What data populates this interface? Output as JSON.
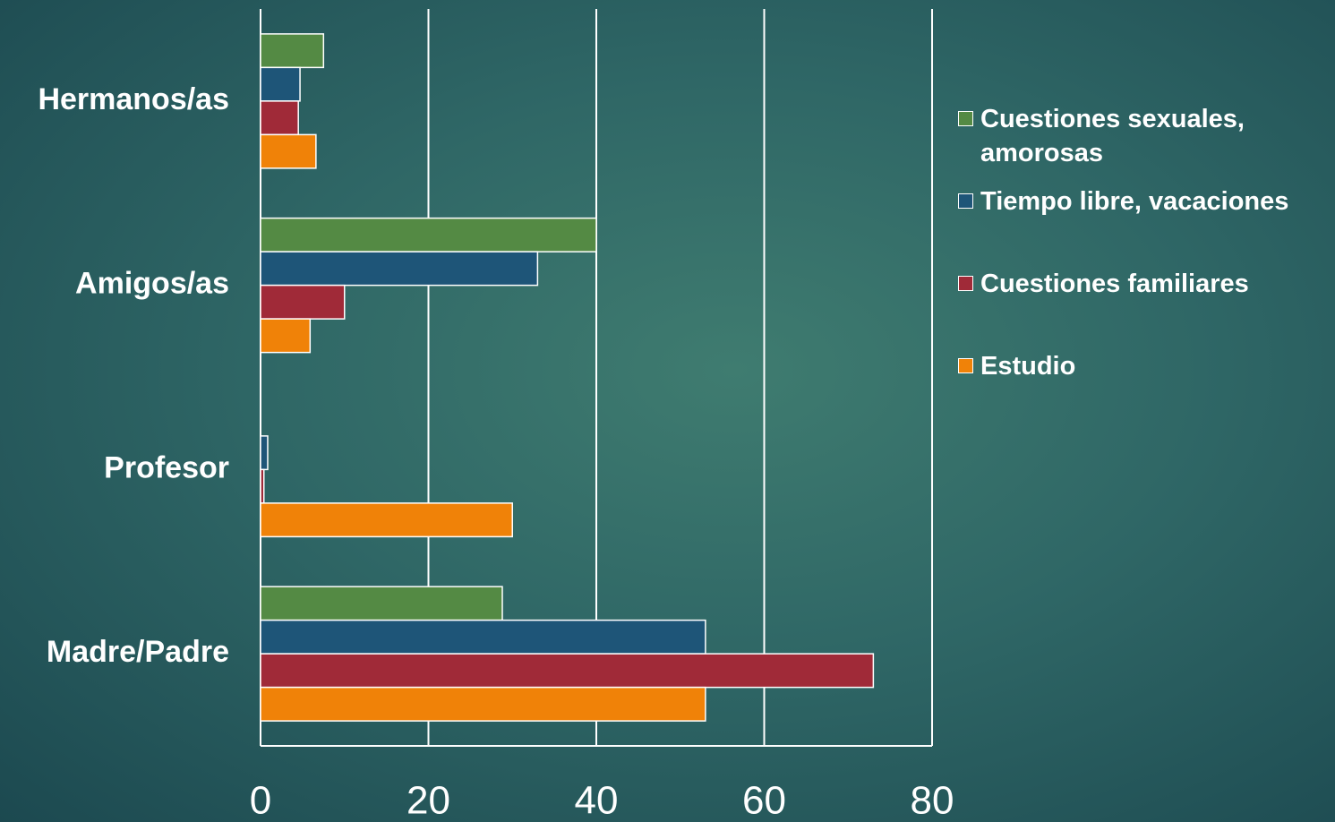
{
  "chart_data": {
    "type": "bar",
    "orientation": "horizontal",
    "categories": [
      "Hermanos/as",
      "Amigos/as",
      "Profesor",
      "Madre/Padre"
    ],
    "series": [
      {
        "name": "Cuestiones sexuales, amorosas",
        "color": "#548a44",
        "values": [
          7.5,
          40,
          0,
          28.8
        ]
      },
      {
        "name": "Tiempo libre, vacaciones",
        "color": "#1e5578",
        "values": [
          4.7,
          33,
          0.85,
          53
        ]
      },
      {
        "name": "Cuestiones familiares",
        "color": "#a02a38",
        "values": [
          4.5,
          10,
          0.4,
          73
        ]
      },
      {
        "name": "Estudio",
        "color": "#f08208",
        "values": [
          6.6,
          5.9,
          30,
          53
        ]
      }
    ],
    "xlim": [
      0,
      80
    ],
    "xticks": [
      0,
      20,
      40,
      60,
      80
    ],
    "grid": true,
    "legend": "right"
  }
}
